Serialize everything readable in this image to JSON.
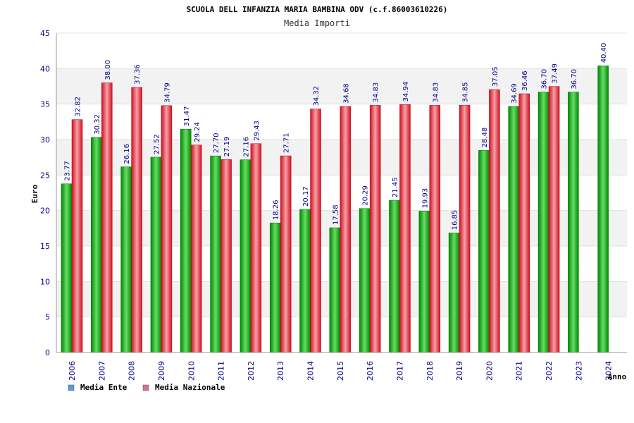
{
  "chart_data": {
    "type": "bar",
    "title": "SCUOLA DELL INFANZIA MARIA BAMBINA ODV (c.f.86003610226)",
    "subtitle": "Media Importi",
    "xlabel": "Anno",
    "ylabel": "Euro",
    "ylim": [
      0,
      45
    ],
    "yticks": [
      "0",
      "5",
      "10",
      "15",
      "20",
      "25",
      "30",
      "35",
      "40",
      "45"
    ],
    "grid": true,
    "legend_position": "bottom-left",
    "categories": [
      "2006",
      "2007",
      "2008",
      "2009",
      "2010",
      "2011",
      "2012",
      "2013",
      "2014",
      "2015",
      "2016",
      "2017",
      "2018",
      "2019",
      "2020",
      "2021",
      "2022",
      "2023",
      "2024"
    ],
    "series": [
      {
        "name": "Media Ente",
        "color": "#00aa00",
        "legend_color": "#5b9bd5",
        "values": [
          23.77,
          30.32,
          26.16,
          27.52,
          31.47,
          27.7,
          27.16,
          18.26,
          20.17,
          17.58,
          20.29,
          21.45,
          19.93,
          16.85,
          28.48,
          34.69,
          36.7,
          36.7,
          40.4
        ],
        "labels": [
          "23.77",
          "30.32",
          "26.16",
          "27.52",
          "31.47",
          "27.70",
          "27.16",
          "18.26",
          "20.17",
          "17.58",
          "20.29",
          "21.45",
          "19.93",
          "16.85",
          "28.48",
          "34.69",
          "36.70",
          "36.70",
          "40.40"
        ]
      },
      {
        "name": "Media Nazionale",
        "color": "#e03030",
        "legend_color": "#d66fa0",
        "values": [
          32.82,
          38.0,
          37.36,
          34.79,
          29.24,
          27.19,
          29.43,
          27.71,
          34.32,
          34.68,
          34.83,
          34.94,
          34.83,
          34.85,
          37.05,
          36.46,
          37.49,
          null,
          null
        ],
        "labels": [
          "32.82",
          "38.00",
          "37.36",
          "34.79",
          "29.24",
          "27.19",
          "29.43",
          "27.71",
          "34.32",
          "34.68",
          "34.83",
          "34.94",
          "34.83",
          "34.85",
          "37.05",
          "36.46",
          "37.49",
          null,
          null
        ]
      }
    ]
  }
}
